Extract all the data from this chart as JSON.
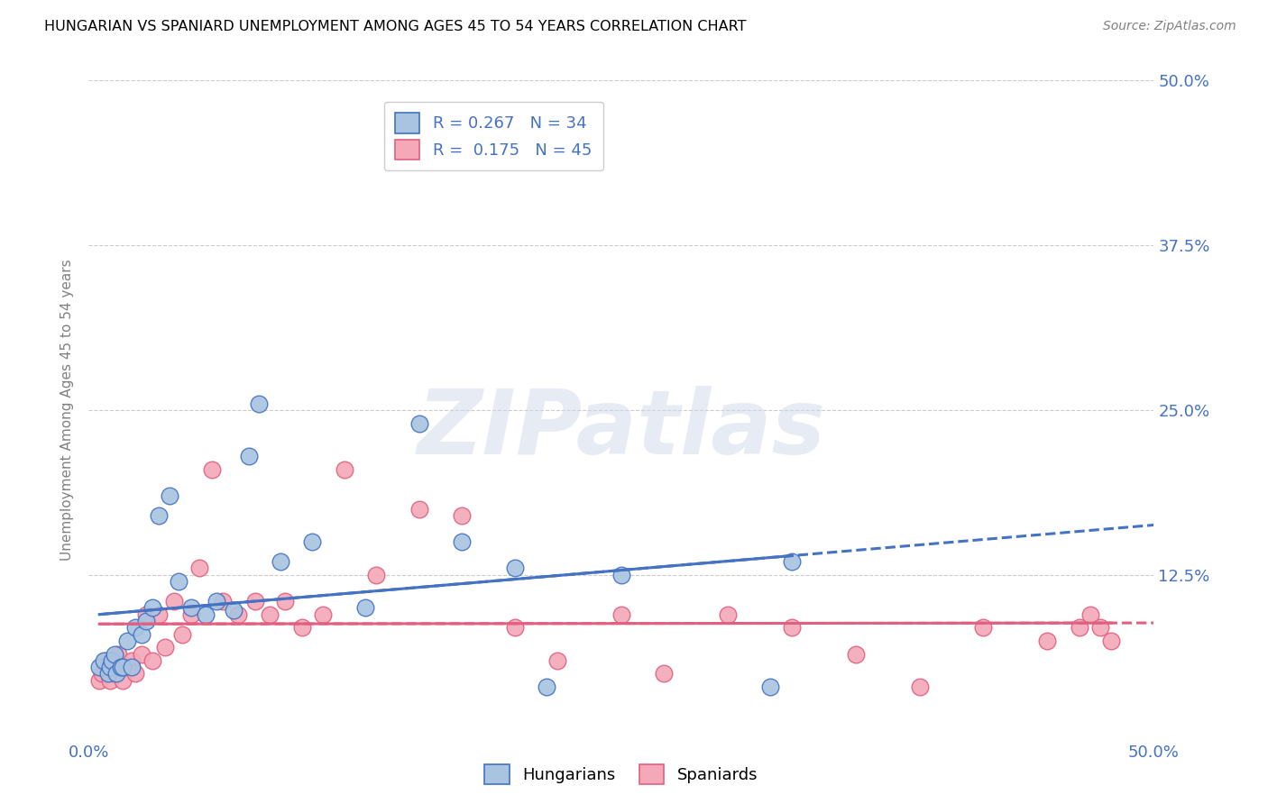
{
  "title": "HUNGARIAN VS SPANIARD UNEMPLOYMENT AMONG AGES 45 TO 54 YEARS CORRELATION CHART",
  "source": "Source: ZipAtlas.com",
  "ylabel": "Unemployment Among Ages 45 to 54 years",
  "xlim": [
    0.0,
    0.5
  ],
  "ylim": [
    0.0,
    0.5
  ],
  "xticks": [
    0.0,
    0.125,
    0.25,
    0.375,
    0.5
  ],
  "yticks": [
    0.0,
    0.125,
    0.25,
    0.375,
    0.5
  ],
  "xticklabels": [
    "0.0%",
    "",
    "",
    "",
    "50.0%"
  ],
  "yticklabels_right": [
    "",
    "12.5%",
    "25.0%",
    "37.5%",
    "50.0%"
  ],
  "hungarian_color": "#a8c4e0",
  "spaniard_color": "#f4a8b8",
  "hungarian_line_color": "#4472c4",
  "spaniard_line_color": "#e06080",
  "hungarian_R": 0.267,
  "hungarian_N": 34,
  "spaniard_R": 0.175,
  "spaniard_N": 45,
  "watermark": "ZIPatlas",
  "legend_label_hungarian": "Hungarians",
  "legend_label_spaniard": "Spaniards",
  "hungarian_x": [
    0.005,
    0.007,
    0.009,
    0.01,
    0.011,
    0.012,
    0.013,
    0.015,
    0.016,
    0.018,
    0.02,
    0.022,
    0.025,
    0.027,
    0.03,
    0.033,
    0.038,
    0.042,
    0.048,
    0.055,
    0.06,
    0.068,
    0.075,
    0.08,
    0.09,
    0.105,
    0.13,
    0.155,
    0.175,
    0.2,
    0.215,
    0.25,
    0.32,
    0.33
  ],
  "hungarian_y": [
    0.055,
    0.06,
    0.05,
    0.055,
    0.06,
    0.065,
    0.05,
    0.055,
    0.055,
    0.075,
    0.055,
    0.085,
    0.08,
    0.09,
    0.1,
    0.17,
    0.185,
    0.12,
    0.1,
    0.095,
    0.105,
    0.098,
    0.215,
    0.255,
    0.135,
    0.15,
    0.1,
    0.24,
    0.15,
    0.13,
    0.04,
    0.125,
    0.04,
    0.135
  ],
  "spaniard_x": [
    0.005,
    0.006,
    0.008,
    0.01,
    0.012,
    0.014,
    0.016,
    0.018,
    0.02,
    0.022,
    0.025,
    0.027,
    0.03,
    0.033,
    0.036,
    0.04,
    0.044,
    0.048,
    0.052,
    0.058,
    0.063,
    0.07,
    0.078,
    0.085,
    0.092,
    0.1,
    0.11,
    0.12,
    0.135,
    0.155,
    0.175,
    0.2,
    0.22,
    0.25,
    0.27,
    0.3,
    0.33,
    0.36,
    0.39,
    0.42,
    0.45,
    0.465,
    0.47,
    0.475,
    0.48
  ],
  "spaniard_y": [
    0.045,
    0.05,
    0.06,
    0.045,
    0.05,
    0.065,
    0.045,
    0.055,
    0.06,
    0.05,
    0.065,
    0.095,
    0.06,
    0.095,
    0.07,
    0.105,
    0.08,
    0.095,
    0.13,
    0.205,
    0.105,
    0.095,
    0.105,
    0.095,
    0.105,
    0.085,
    0.095,
    0.205,
    0.125,
    0.175,
    0.17,
    0.085,
    0.06,
    0.095,
    0.05,
    0.095,
    0.085,
    0.065,
    0.04,
    0.085,
    0.075,
    0.085,
    0.095,
    0.085,
    0.075
  ]
}
